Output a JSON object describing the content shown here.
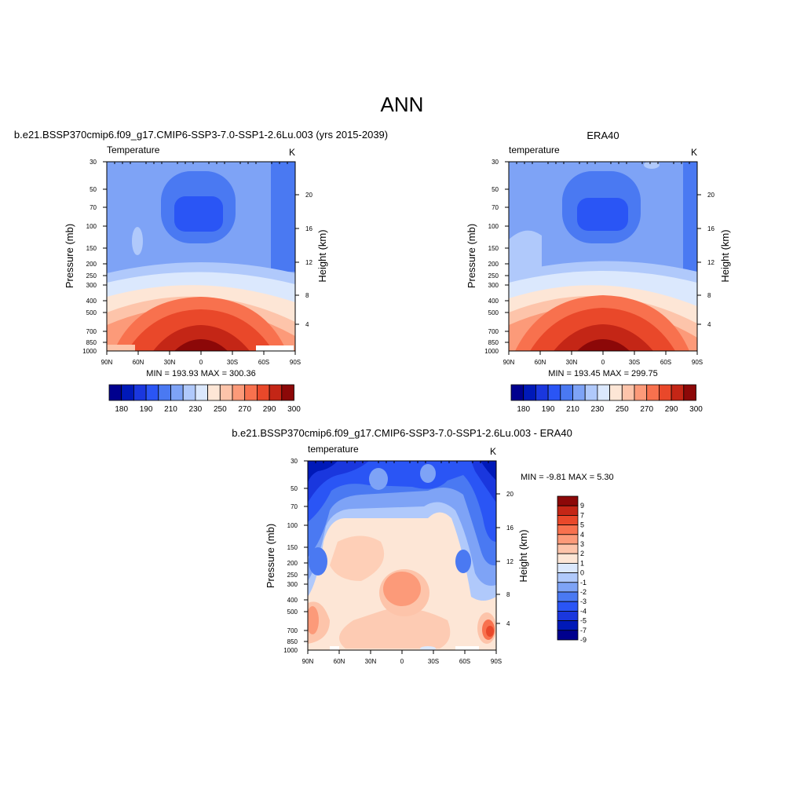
{
  "page": {
    "title": "ANN"
  },
  "colors": {
    "panel_palette": [
      "#00008e",
      "#0019b8",
      "#1a37de",
      "#2a55f5",
      "#4a79f2",
      "#7ea3f6",
      "#b0c9fb",
      "#dbe8fd",
      "#fde6d6",
      "#fdc4aa",
      "#fc9a79",
      "#f8714e",
      "#e9482a",
      "#c42616",
      "#8c0808"
    ],
    "diff_palette": [
      "#00008e",
      "#0019b8",
      "#1a37de",
      "#2a55f5",
      "#4a79f2",
      "#7ea3f6",
      "#b0c9fb",
      "#dbe8fd",
      "#fde6d6",
      "#fdc4aa",
      "#fc9a79",
      "#f8714e",
      "#e9482a",
      "#c42616",
      "#8c0808"
    ]
  },
  "chart_data": [
    {
      "type": "heatmap",
      "id": "model",
      "title": "b.e21.BSSP370cmip6.f09_g17.CMIP6-SSP3-7.0-SSP1-2.6Lu.003 (yrs 2015-2039)",
      "left_label": "Temperature",
      "right_label": "K",
      "ylabel": "Pressure (mb)",
      "ylabel_right": "Height (km)",
      "x_ticks": [
        "90N",
        "60N",
        "30N",
        "0",
        "30S",
        "60S",
        "90S"
      ],
      "y_ticks": [
        "30",
        "50",
        "70",
        "100",
        "150",
        "200",
        "250",
        "300",
        "400",
        "500",
        "700",
        "850",
        "1000"
      ],
      "y_ticks_right": [
        "20",
        "16",
        "12",
        "8",
        "4"
      ],
      "stats": "MIN = 193.93  MAX = 300.36",
      "colorbar_labels": [
        "180",
        "190",
        "210",
        "230",
        "250",
        "270",
        "290",
        "300"
      ]
    },
    {
      "type": "heatmap",
      "id": "obs",
      "title": "ERA40",
      "left_label": "temperature",
      "right_label": "K",
      "ylabel": "Pressure (mb)",
      "ylabel_right": "Height (km)",
      "x_ticks": [
        "90N",
        "60N",
        "30N",
        "0",
        "30S",
        "60S",
        "90S"
      ],
      "y_ticks": [
        "30",
        "50",
        "70",
        "100",
        "150",
        "200",
        "250",
        "300",
        "400",
        "500",
        "700",
        "850",
        "1000"
      ],
      "y_ticks_right": [
        "20",
        "16",
        "12",
        "8",
        "4"
      ],
      "stats": "MIN = 193.45  MAX = 299.75",
      "colorbar_labels": [
        "180",
        "190",
        "210",
        "230",
        "250",
        "270",
        "290",
        "300"
      ]
    },
    {
      "type": "heatmap",
      "id": "diff",
      "title": "b.e21.BSSP370cmip6.f09_g17.CMIP6-SSP3-7.0-SSP1-2.6Lu.003 - ERA40",
      "left_label": "temperature",
      "right_label": "K",
      "ylabel": "Pressure (mb)",
      "ylabel_right": "Height (km)",
      "x_ticks": [
        "90N",
        "60N",
        "30N",
        "0",
        "30S",
        "60S",
        "90S"
      ],
      "y_ticks": [
        "30",
        "50",
        "70",
        "100",
        "150",
        "200",
        "250",
        "300",
        "400",
        "500",
        "700",
        "850",
        "1000"
      ],
      "y_ticks_right": [
        "20",
        "16",
        "12",
        "8",
        "4"
      ],
      "stats": "MIN =  -9.81  MAX =   5.30",
      "colorbar_labels": [
        "9",
        "7",
        "5",
        "4",
        "3",
        "2",
        "1",
        "0",
        "-1",
        "-2",
        "-3",
        "-4",
        "-5",
        "-7",
        "-9"
      ]
    }
  ]
}
